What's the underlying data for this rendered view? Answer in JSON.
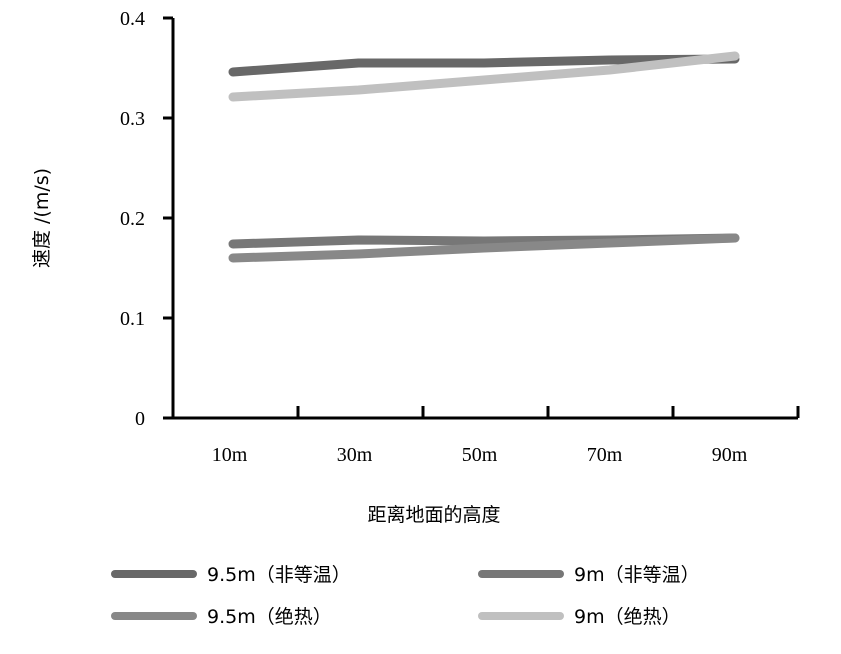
{
  "chart_data": {
    "type": "line",
    "title": "",
    "xlabel": "距离地面的高度",
    "ylabel": "速度 /(m/s)",
    "categories": [
      "10m",
      "30m",
      "50m",
      "70m",
      "90m"
    ],
    "ylim": [
      0,
      0.4
    ],
    "yticks": [
      "0",
      "0.1",
      "0.2",
      "0.3",
      "0.4"
    ],
    "grid": false,
    "legend_position": "bottom",
    "series": [
      {
        "name": "9.5m（非等温）",
        "color": "#686868",
        "values": [
          0.346,
          0.355,
          0.355,
          0.358,
          0.359
        ]
      },
      {
        "name": "9m（非等温）",
        "color": "#777777",
        "values": [
          0.174,
          0.178,
          0.177,
          0.178,
          0.18
        ]
      },
      {
        "name": "9.5m（绝热）",
        "color": "#888888",
        "values": [
          0.16,
          0.164,
          0.17,
          0.175,
          0.18
        ]
      },
      {
        "name": "9m（绝热）",
        "color": "#c0c0c0",
        "values": [
          0.321,
          0.328,
          0.338,
          0.348,
          0.362
        ]
      }
    ]
  }
}
